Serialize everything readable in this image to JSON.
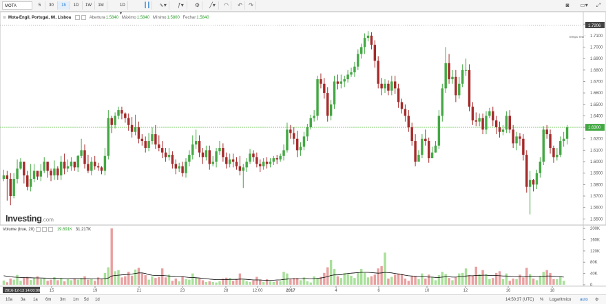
{
  "toolbar": {
    "symbol": "MOTA",
    "intervals": [
      "5",
      "30",
      "1h",
      "1D",
      "1W",
      "1M",
      "1D"
    ],
    "active_interval": "1h"
  },
  "legend": {
    "name": "Mota-Engil, Portugal, 60, Lisboa",
    "open_label": "Abertura",
    "open_value": "1.5840",
    "high_label": "Máximo",
    "high_value": "1.5840",
    "low_label": "Mínimo",
    "low_value": "1.5800",
    "close_label": "Fechar",
    "close_value": "1.5840"
  },
  "volume_legend": {
    "label": "Volume (true, 20)",
    "value1": "19.691K",
    "value2": "31.217K"
  },
  "watermark": {
    "brand": "Investing",
    "suffix": ".com"
  },
  "realtime_label": "tempo real",
  "last_price_label": "1.6300",
  "top_price_label": "1.7206",
  "cursor_date_label": "2016-12-13 14:00:00",
  "bottom": {
    "ranges": [
      "10a",
      "3a",
      "1a",
      "6m",
      "3m",
      "1m",
      "5d",
      "1d"
    ],
    "time": "14:50:37 (UTC)",
    "percent": "%",
    "log": "Logarítmico",
    "auto": "auto"
  },
  "colors": {
    "up": "#43a843",
    "down": "#a52a2a",
    "vol_up": "#a8e09a",
    "vol_down": "#e8a0a0",
    "ma_line": "#000000",
    "price_line": "#7ccf6a"
  },
  "chart_data": {
    "type": "candlestick",
    "title": "Mota-Engil, Portugal, 60, Lisboa",
    "x_tick_labels": [
      "15",
      "19",
      "21",
      "23",
      "28",
      "12:00",
      "2017",
      "4",
      "6",
      "10",
      "12",
      "16",
      "18"
    ],
    "y_tick_labels": [
      "1.5500",
      "1.5600",
      "1.5700",
      "1.5800",
      "1.5900",
      "1.6000",
      "1.6100",
      "1.6200",
      "1.6300",
      "1.6400",
      "1.6500",
      "1.6600",
      "1.6700",
      "1.6800",
      "1.6900",
      "1.7000",
      "1.7100",
      "1.7200"
    ],
    "volume_tick_labels": [
      "0",
      "40K",
      "80K",
      "120K",
      "160K",
      "200K"
    ],
    "ylim": [
      1.546,
      1.7225
    ],
    "volume_ylim": [
      0,
      210000
    ],
    "last_price": 1.63,
    "closes": [
      1.588,
      1.585,
      1.57,
      1.585,
      1.594,
      1.6,
      1.588,
      1.578,
      1.585,
      1.592,
      1.587,
      1.592,
      1.6,
      1.592,
      1.588,
      1.594,
      1.588,
      1.6,
      1.594,
      1.596,
      1.6,
      1.595,
      1.605,
      1.61,
      1.598,
      1.592,
      1.6,
      1.596,
      1.595,
      1.592,
      1.605,
      1.638,
      1.632,
      1.64,
      1.645,
      1.642,
      1.638,
      1.632,
      1.626,
      1.63,
      1.62,
      1.618,
      1.612,
      1.618,
      1.624,
      1.615,
      1.612,
      1.608,
      1.604,
      1.606,
      1.598,
      1.594,
      1.596,
      1.59,
      1.6,
      1.606,
      1.615,
      1.618,
      1.608,
      1.604,
      1.61,
      1.598,
      1.6,
      1.609,
      1.612,
      1.604,
      1.598,
      1.602,
      1.6,
      1.596,
      1.592,
      1.595,
      1.6,
      1.607,
      1.604,
      1.598,
      1.596,
      1.6,
      1.598,
      1.6,
      1.603,
      1.602,
      1.605,
      1.61,
      1.628,
      1.625,
      1.62,
      1.61,
      1.613,
      1.622,
      1.63,
      1.638,
      1.64,
      1.672,
      1.668,
      1.66,
      1.64,
      1.65,
      1.67,
      1.668,
      1.67,
      1.672,
      1.676,
      1.678,
      1.683,
      1.694,
      1.7,
      1.708,
      1.71,
      1.702,
      1.688,
      1.668,
      1.664,
      1.668,
      1.662,
      1.67,
      1.664,
      1.652,
      1.646,
      1.64,
      1.63,
      1.618,
      1.6,
      1.606,
      1.62,
      1.618,
      1.603,
      1.608,
      1.614,
      1.64,
      1.664,
      1.686,
      1.672,
      1.674,
      1.658,
      1.668,
      1.68,
      1.68,
      1.648,
      1.636,
      1.635,
      1.638,
      1.628,
      1.64,
      1.644,
      1.636,
      1.63,
      1.626,
      1.628,
      1.64,
      1.628,
      1.616,
      1.622,
      1.62,
      1.606,
      1.578,
      1.584,
      1.58,
      1.59,
      1.6,
      1.628,
      1.624,
      1.612,
      1.604,
      1.606,
      1.618,
      1.62,
      1.63
    ],
    "highs": [
      1.593,
      1.592,
      1.59,
      1.59,
      1.602,
      1.603,
      1.6,
      1.592,
      1.598,
      1.598,
      1.592,
      1.598,
      1.604,
      1.597,
      1.594,
      1.601,
      1.596,
      1.605,
      1.607,
      1.602,
      1.604,
      1.6,
      1.606,
      1.62,
      1.615,
      1.606,
      1.604,
      1.605,
      1.599,
      1.596,
      1.612,
      1.645,
      1.64,
      1.643,
      1.648,
      1.648,
      1.643,
      1.642,
      1.639,
      1.641,
      1.635,
      1.624,
      1.622,
      1.625,
      1.63,
      1.632,
      1.623,
      1.618,
      1.612,
      1.612,
      1.609,
      1.602,
      1.599,
      1.6,
      1.603,
      1.61,
      1.623,
      1.628,
      1.623,
      1.612,
      1.614,
      1.614,
      1.605,
      1.612,
      1.618,
      1.616,
      1.608,
      1.607,
      1.607,
      1.604,
      1.605,
      1.598,
      1.603,
      1.611,
      1.61,
      1.608,
      1.602,
      1.603,
      1.604,
      1.603,
      1.605,
      1.606,
      1.607,
      1.615,
      1.634,
      1.632,
      1.63,
      1.627,
      1.617,
      1.626,
      1.633,
      1.641,
      1.645,
      1.675,
      1.677,
      1.673,
      1.665,
      1.654,
      1.675,
      1.676,
      1.676,
      1.675,
      1.68,
      1.682,
      1.687,
      1.698,
      1.703,
      1.712,
      1.714,
      1.713,
      1.706,
      1.692,
      1.673,
      1.672,
      1.671,
      1.675,
      1.675,
      1.668,
      1.655,
      1.65,
      1.645,
      1.634,
      1.624,
      1.61,
      1.624,
      1.628,
      1.621,
      1.613,
      1.618,
      1.645,
      1.668,
      1.7,
      1.694,
      1.68,
      1.68,
      1.674,
      1.685,
      1.69,
      1.685,
      1.652,
      1.643,
      1.642,
      1.642,
      1.644,
      1.647,
      1.648,
      1.64,
      1.635,
      1.632,
      1.644,
      1.645,
      1.632,
      1.626,
      1.625,
      1.624,
      1.61,
      1.592,
      1.585,
      1.593,
      1.604,
      1.631,
      1.632,
      1.628,
      1.614,
      1.612,
      1.622,
      1.626,
      1.632
    ],
    "lows": [
      1.583,
      1.566,
      1.562,
      1.568,
      1.581,
      1.593,
      1.581,
      1.575,
      1.574,
      1.582,
      1.584,
      1.583,
      1.59,
      1.586,
      1.583,
      1.584,
      1.584,
      1.584,
      1.589,
      1.591,
      1.592,
      1.592,
      1.591,
      1.603,
      1.594,
      1.59,
      1.588,
      1.593,
      1.592,
      1.589,
      1.588,
      1.602,
      1.625,
      1.629,
      1.637,
      1.637,
      1.634,
      1.627,
      1.621,
      1.623,
      1.616,
      1.614,
      1.608,
      1.609,
      1.615,
      1.611,
      1.609,
      1.603,
      1.6,
      1.601,
      1.594,
      1.589,
      1.591,
      1.587,
      1.586,
      1.596,
      1.602,
      1.611,
      1.604,
      1.598,
      1.601,
      1.593,
      1.596,
      1.595,
      1.606,
      1.6,
      1.594,
      1.595,
      1.595,
      1.593,
      1.588,
      1.577,
      1.591,
      1.598,
      1.6,
      1.595,
      1.591,
      1.593,
      1.594,
      1.595,
      1.597,
      1.598,
      1.6,
      1.601,
      1.608,
      1.62,
      1.615,
      1.604,
      1.605,
      1.61,
      1.618,
      1.628,
      1.635,
      1.636,
      1.664,
      1.655,
      1.635,
      1.636,
      1.646,
      1.663,
      1.664,
      1.665,
      1.669,
      1.674,
      1.674,
      1.68,
      1.69,
      1.694,
      1.705,
      1.698,
      1.682,
      1.664,
      1.658,
      1.66,
      1.658,
      1.658,
      1.659,
      1.647,
      1.642,
      1.635,
      1.626,
      1.614,
      1.596,
      1.601,
      1.603,
      1.614,
      1.599,
      1.603,
      1.608,
      1.611,
      1.635,
      1.66,
      1.668,
      1.668,
      1.652,
      1.655,
      1.665,
      1.675,
      1.644,
      1.632,
      1.631,
      1.631,
      1.624,
      1.624,
      1.638,
      1.631,
      1.624,
      1.621,
      1.623,
      1.625,
      1.625,
      1.612,
      1.61,
      1.614,
      1.601,
      1.573,
      1.554,
      1.574,
      1.576,
      1.586,
      1.597,
      1.62,
      1.607,
      1.599,
      1.601,
      1.604,
      1.613,
      1.615
    ],
    "volumes": [
      15000,
      9000,
      22000,
      18000,
      35000,
      14000,
      26000,
      28000,
      17000,
      25000,
      30000,
      20000,
      22000,
      14000,
      18000,
      27000,
      16000,
      24000,
      12000,
      20000,
      16000,
      22000,
      18000,
      24000,
      30000,
      18000,
      20000,
      14000,
      26000,
      21000,
      42000,
      62000,
      200000,
      48000,
      52000,
      26000,
      30000,
      46000,
      32000,
      54000,
      60000,
      40000,
      34000,
      18000,
      30000,
      24000,
      28000,
      58000,
      26000,
      36000,
      14000,
      22000,
      12000,
      30000,
      20000,
      18000,
      40000,
      24000,
      22000,
      16000,
      10000,
      12000,
      10000,
      8000,
      12000,
      22000,
      25000,
      24000,
      14000,
      20000,
      40000,
      18000,
      12000,
      10000,
      15000,
      28000,
      18000,
      10000,
      20000,
      12000,
      10000,
      14000,
      12000,
      46000,
      40000,
      20000,
      24000,
      24000,
      16000,
      26000,
      12000,
      8000,
      30000,
      22000,
      28000,
      42000,
      62000,
      88000,
      56000,
      30000,
      24000,
      42000,
      38000,
      32000,
      24000,
      44000,
      56000,
      42000,
      26000,
      30000,
      36000,
      58000,
      66000,
      114000,
      22000,
      28000,
      36000,
      40000,
      38000,
      22000,
      14000,
      30000,
      30000,
      20000,
      40000,
      22000,
      36000,
      28000,
      16000,
      34000,
      46000,
      38000,
      24000,
      16000,
      26000,
      40000,
      42000,
      58000,
      34000,
      32000,
      64000,
      38000,
      52000,
      38000,
      20000,
      24000,
      42000,
      48000,
      20000,
      40000,
      14000,
      22000,
      20000,
      36000,
      26000,
      60000,
      38000,
      22000,
      16000,
      32000,
      46000,
      52000,
      42000,
      20000,
      20000,
      30000,
      14000
    ],
    "volume_ma": [
      32000,
      30000,
      28000,
      27000,
      26500,
      26000,
      25500,
      25000,
      24800,
      24500,
      24300,
      24000,
      23800,
      23500,
      23000,
      22800,
      22500,
      22300,
      22000,
      21800,
      21600,
      21600,
      21400,
      21200,
      21300,
      21200,
      21000,
      21000,
      21000,
      21100,
      22000,
      24000,
      31000,
      33000,
      34000,
      35000,
      36000,
      37000,
      38000,
      40000,
      42000,
      42000,
      40000,
      36000,
      34000,
      33000,
      33000,
      33000,
      32000,
      31000,
      30000,
      29000,
      28000,
      28000,
      27000,
      26000,
      26000,
      25000,
      24000,
      23000,
      22000,
      20000,
      19000,
      18000,
      18000,
      18000,
      18000,
      19000,
      19000,
      19000,
      20000,
      20000,
      19000,
      18000,
      17000,
      17000,
      17000,
      16000,
      16000,
      16000,
      16000,
      17000,
      17000,
      19000,
      20000,
      21000,
      21000,
      21000,
      21000,
      22000,
      22000,
      21000,
      22000,
      23000,
      24000,
      26000,
      29000,
      33000,
      35000,
      35000,
      36000,
      38000,
      40000,
      41000,
      42000,
      43000,
      44000,
      44000,
      44000,
      43000,
      42000,
      41000,
      42000,
      44000,
      43000,
      42000,
      40000,
      38000,
      36000,
      34000,
      32000,
      31000,
      30000,
      29000,
      28000,
      28000,
      27000,
      27000,
      26000,
      26000,
      27000,
      28000,
      28000,
      27000,
      27000,
      28000,
      29000,
      31000,
      32000,
      32000,
      33000,
      33000,
      34000,
      34000,
      33000,
      33000,
      33000,
      32000,
      31000,
      31000,
      30000,
      29000,
      28000,
      28000,
      28000,
      29000,
      30000,
      30000,
      29000,
      29000,
      30000,
      31000,
      31000,
      30000,
      29000,
      28000,
      27000
    ]
  }
}
